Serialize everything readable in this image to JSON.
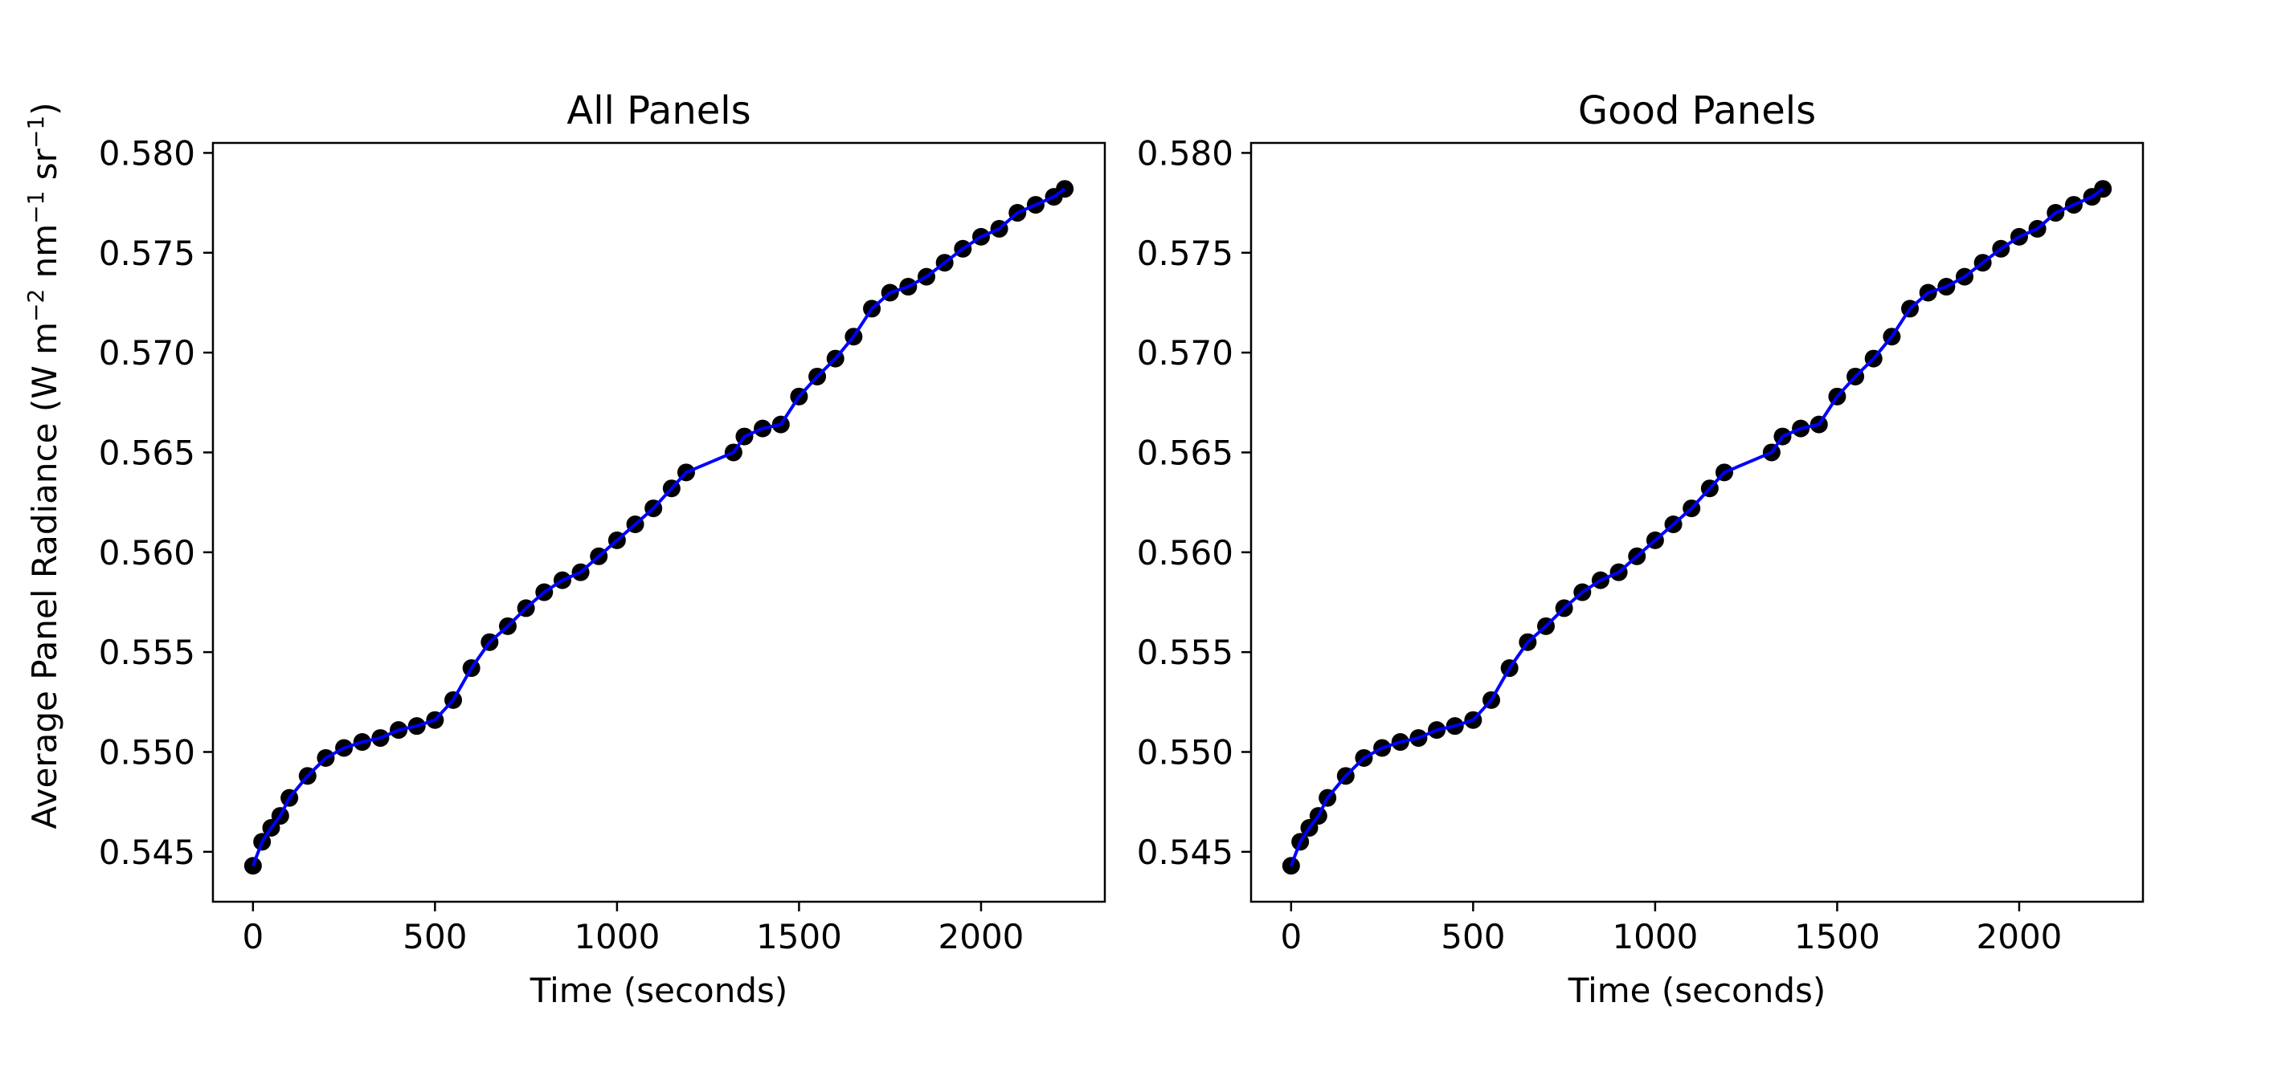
{
  "figure": {
    "ylabel_main": "Average Panel Radiance (W m",
    "ylabel_sup1": "−2",
    "ylabel_mid": " nm",
    "ylabel_sup2": "−1",
    "ylabel_mid2": " sr",
    "ylabel_sup3": "−1",
    "ylabel_end": ")"
  },
  "chart_data": [
    {
      "type": "line",
      "title": "All Panels",
      "xlabel": "Time (seconds)",
      "ylabel": "Average Panel Radiance (W m⁻² nm⁻¹ sr⁻¹)",
      "xlim": [
        -110,
        2340
      ],
      "ylim": [
        0.5425,
        0.5805
      ],
      "xticks": [
        0,
        500,
        1000,
        1500,
        2000
      ],
      "yticks": [
        0.545,
        0.55,
        0.555,
        0.56,
        0.565,
        0.57,
        0.575,
        0.58
      ],
      "ytick_labels": [
        "0.545",
        "0.550",
        "0.555",
        "0.560",
        "0.565",
        "0.570",
        "0.575",
        "0.580"
      ],
      "grid": false,
      "marker_color": "#000000",
      "line_color": "#0000ff",
      "series": [
        {
          "x": [
            0,
            25,
            50,
            75,
            100,
            150,
            200,
            250,
            300,
            350,
            400,
            450,
            500,
            550,
            600,
            650,
            700,
            750,
            800,
            850,
            900,
            950,
            1000,
            1050,
            1100,
            1150,
            1190,
            1320,
            1350,
            1400,
            1450,
            1500,
            1550,
            1600,
            1650,
            1700,
            1750,
            1800,
            1850,
            1900,
            1950,
            2000,
            2050,
            2100,
            2150,
            2200,
            2230
          ],
          "y": [
            0.5443,
            0.5455,
            0.5462,
            0.5468,
            0.5477,
            0.5488,
            0.5497,
            0.5502,
            0.5505,
            0.5507,
            0.5511,
            0.5513,
            0.5516,
            0.5526,
            0.5542,
            0.5555,
            0.5563,
            0.5572,
            0.558,
            0.5586,
            0.559,
            0.5598,
            0.5606,
            0.5614,
            0.5622,
            0.5632,
            0.564,
            0.565,
            0.5658,
            0.5662,
            0.5664,
            0.5678,
            0.5688,
            0.5697,
            0.5708,
            0.5722,
            0.573,
            0.5733,
            0.5738,
            0.5745,
            0.5752,
            0.5758,
            0.5762,
            0.577,
            0.5774,
            0.5778,
            0.5782
          ]
        }
      ]
    },
    {
      "type": "line",
      "title": "Good Panels",
      "xlabel": "Time (seconds)",
      "ylabel": "",
      "xlim": [
        -110,
        2340
      ],
      "ylim": [
        0.5425,
        0.5805
      ],
      "xticks": [
        0,
        500,
        1000,
        1500,
        2000
      ],
      "yticks": [
        0.545,
        0.55,
        0.555,
        0.56,
        0.565,
        0.57,
        0.575,
        0.58
      ],
      "ytick_labels": [
        "0.545",
        "0.550",
        "0.555",
        "0.560",
        "0.565",
        "0.570",
        "0.575",
        "0.580"
      ],
      "grid": false,
      "marker_color": "#000000",
      "line_color": "#0000ff",
      "series": [
        {
          "x": [
            0,
            25,
            50,
            75,
            100,
            150,
            200,
            250,
            300,
            350,
            400,
            450,
            500,
            550,
            600,
            650,
            700,
            750,
            800,
            850,
            900,
            950,
            1000,
            1050,
            1100,
            1150,
            1190,
            1320,
            1350,
            1400,
            1450,
            1500,
            1550,
            1600,
            1650,
            1700,
            1750,
            1800,
            1850,
            1900,
            1950,
            2000,
            2050,
            2100,
            2150,
            2200,
            2230
          ],
          "y": [
            0.5443,
            0.5455,
            0.5462,
            0.5468,
            0.5477,
            0.5488,
            0.5497,
            0.5502,
            0.5505,
            0.5507,
            0.5511,
            0.5513,
            0.5516,
            0.5526,
            0.5542,
            0.5555,
            0.5563,
            0.5572,
            0.558,
            0.5586,
            0.559,
            0.5598,
            0.5606,
            0.5614,
            0.5622,
            0.5632,
            0.564,
            0.565,
            0.5658,
            0.5662,
            0.5664,
            0.5678,
            0.5688,
            0.5697,
            0.5708,
            0.5722,
            0.573,
            0.5733,
            0.5738,
            0.5745,
            0.5752,
            0.5758,
            0.5762,
            0.577,
            0.5774,
            0.5778,
            0.5782
          ]
        }
      ]
    }
  ]
}
